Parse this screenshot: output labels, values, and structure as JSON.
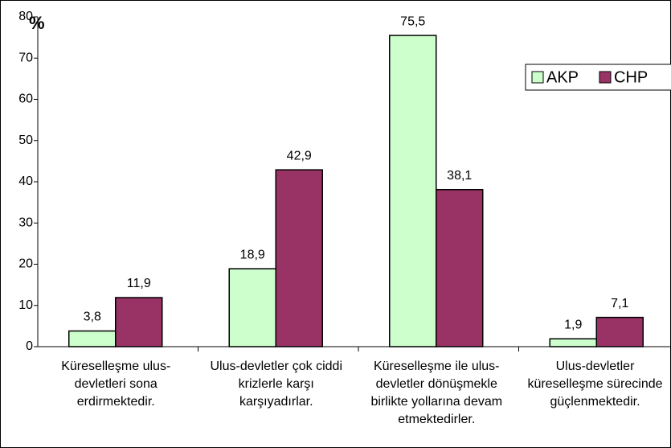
{
  "chart_data": {
    "type": "bar",
    "ylabel": "%",
    "categories": [
      "Küreselleşme ulus-devletleri sona erdirmektedir.",
      "Ulus-devletler çok ciddi krizlerle karşı karşıyadırlar.",
      "Küreselleşme ile ulus-devletler dönüşmekle birlikte yollarına devam etmektedirler.",
      "Ulus-devletler küreselleşme sürecinde güçlenmektedir."
    ],
    "series": [
      {
        "name": "AKP",
        "color": "#ccffcc",
        "values": [
          3.8,
          18.9,
          75.5,
          1.9
        ],
        "value_labels": [
          "3,8",
          "18,9",
          "75,5",
          "1,9"
        ]
      },
      {
        "name": "CHP",
        "color": "#993366",
        "values": [
          11.9,
          42.9,
          38.1,
          7.1
        ],
        "value_labels": [
          "11,9",
          "42,9",
          "38,1",
          "7,1"
        ]
      }
    ],
    "ylim": [
      0,
      80
    ],
    "yticks": [
      0,
      10,
      20,
      30,
      40,
      50,
      60,
      70,
      80
    ],
    "grid": false,
    "legend": "upper right"
  }
}
